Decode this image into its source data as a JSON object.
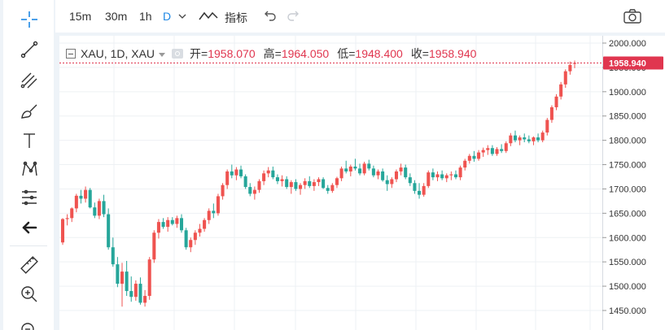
{
  "toolbar": {
    "timeframes": [
      "15m",
      "30m",
      "1h",
      "D"
    ],
    "active_timeframe": "D",
    "indicators_label": "指标"
  },
  "legend": {
    "symbol": "XAU, 1D, XAU",
    "open_label": "开=",
    "open_value": "1958.070",
    "high_label": "高=",
    "high_value": "1964.050",
    "low_label": "低=",
    "low_value": "1948.400",
    "close_label": "收=",
    "close_value": "1958.940"
  },
  "price_axis": {
    "ticks": [
      "2000.000",
      "1950.000",
      "1900.000",
      "1850.000",
      "1800.000",
      "1750.000",
      "1700.000",
      "1650.000",
      "1600.000",
      "1550.000",
      "1500.000",
      "1450.000"
    ],
    "last_price": "1958.940"
  },
  "colors": {
    "up": "#ef5350",
    "down": "#26a69a",
    "last_price_bg": "#e0364f",
    "accent": "#1e88e5"
  },
  "chart_data": {
    "type": "candlestick",
    "symbol": "XAU",
    "interval": "1D",
    "ylim": [
      1435,
      2005
    ],
    "candles": [
      [
        1590,
        1640,
        1585,
        1638
      ],
      [
        1638,
        1648,
        1625,
        1640
      ],
      [
        1640,
        1662,
        1632,
        1660
      ],
      [
        1660,
        1690,
        1652,
        1686
      ],
      [
        1686,
        1698,
        1670,
        1680
      ],
      [
        1680,
        1705,
        1672,
        1698
      ],
      [
        1698,
        1702,
        1660,
        1662
      ],
      [
        1662,
        1672,
        1640,
        1645
      ],
      [
        1645,
        1680,
        1638,
        1675
      ],
      [
        1675,
        1688,
        1642,
        1648
      ],
      [
        1648,
        1660,
        1575,
        1580
      ],
      [
        1580,
        1600,
        1540,
        1545
      ],
      [
        1545,
        1560,
        1498,
        1505
      ],
      [
        1505,
        1548,
        1458,
        1530
      ],
      [
        1530,
        1552,
        1480,
        1490
      ],
      [
        1490,
        1520,
        1468,
        1478
      ],
      [
        1478,
        1512,
        1470,
        1505
      ],
      [
        1505,
        1518,
        1462,
        1466
      ],
      [
        1466,
        1492,
        1458,
        1480
      ],
      [
        1480,
        1560,
        1472,
        1555
      ],
      [
        1555,
        1615,
        1548,
        1610
      ],
      [
        1610,
        1638,
        1598,
        1632
      ],
      [
        1632,
        1640,
        1618,
        1622
      ],
      [
        1622,
        1642,
        1612,
        1636
      ],
      [
        1636,
        1642,
        1625,
        1628
      ],
      [
        1628,
        1645,
        1620,
        1640
      ],
      [
        1640,
        1648,
        1610,
        1615
      ],
      [
        1615,
        1620,
        1575,
        1580
      ],
      [
        1580,
        1600,
        1570,
        1595
      ],
      [
        1595,
        1615,
        1585,
        1610
      ],
      [
        1610,
        1628,
        1602,
        1618
      ],
      [
        1618,
        1640,
        1612,
        1636
      ],
      [
        1636,
        1660,
        1628,
        1655
      ],
      [
        1655,
        1670,
        1640,
        1650
      ],
      [
        1650,
        1690,
        1645,
        1685
      ],
      [
        1685,
        1712,
        1678,
        1708
      ],
      [
        1708,
        1740,
        1700,
        1736
      ],
      [
        1736,
        1750,
        1722,
        1728
      ],
      [
        1728,
        1745,
        1718,
        1740
      ],
      [
        1740,
        1748,
        1722,
        1726
      ],
      [
        1726,
        1730,
        1700,
        1704
      ],
      [
        1704,
        1712,
        1685,
        1690
      ],
      [
        1690,
        1705,
        1678,
        1698
      ],
      [
        1698,
        1720,
        1692,
        1716
      ],
      [
        1716,
        1738,
        1708,
        1732
      ],
      [
        1732,
        1745,
        1724,
        1738
      ],
      [
        1738,
        1746,
        1720,
        1724
      ],
      [
        1724,
        1730,
        1710,
        1716
      ],
      [
        1716,
        1728,
        1705,
        1720
      ],
      [
        1720,
        1726,
        1700,
        1704
      ],
      [
        1704,
        1718,
        1690,
        1714
      ],
      [
        1714,
        1720,
        1696,
        1700
      ],
      [
        1700,
        1712,
        1688,
        1708
      ],
      [
        1708,
        1722,
        1700,
        1716
      ],
      [
        1716,
        1726,
        1702,
        1706
      ],
      [
        1706,
        1720,
        1696,
        1714
      ],
      [
        1714,
        1724,
        1706,
        1720
      ],
      [
        1720,
        1724,
        1700,
        1702
      ],
      [
        1702,
        1708,
        1690,
        1696
      ],
      [
        1696,
        1712,
        1692,
        1708
      ],
      [
        1708,
        1725,
        1702,
        1722
      ],
      [
        1722,
        1746,
        1716,
        1742
      ],
      [
        1742,
        1758,
        1732,
        1736
      ],
      [
        1736,
        1750,
        1726,
        1746
      ],
      [
        1746,
        1762,
        1738,
        1742
      ],
      [
        1742,
        1752,
        1728,
        1732
      ],
      [
        1732,
        1756,
        1728,
        1752
      ],
      [
        1752,
        1760,
        1738,
        1742
      ],
      [
        1742,
        1748,
        1724,
        1728
      ],
      [
        1728,
        1740,
        1720,
        1736
      ],
      [
        1736,
        1742,
        1715,
        1718
      ],
      [
        1718,
        1728,
        1696,
        1710
      ],
      [
        1710,
        1724,
        1702,
        1720
      ],
      [
        1720,
        1740,
        1714,
        1736
      ],
      [
        1736,
        1752,
        1728,
        1744
      ],
      [
        1744,
        1750,
        1720,
        1724
      ],
      [
        1724,
        1732,
        1706,
        1712
      ],
      [
        1712,
        1718,
        1690,
        1696
      ],
      [
        1696,
        1712,
        1680,
        1688
      ],
      [
        1688,
        1712,
        1684,
        1706
      ],
      [
        1706,
        1738,
        1702,
        1734
      ],
      [
        1734,
        1742,
        1718,
        1724
      ],
      [
        1724,
        1736,
        1716,
        1730
      ],
      [
        1730,
        1738,
        1718,
        1722
      ],
      [
        1722,
        1732,
        1714,
        1728
      ],
      [
        1728,
        1736,
        1718,
        1730
      ],
      [
        1730,
        1738,
        1720,
        1724
      ],
      [
        1724,
        1748,
        1718,
        1744
      ],
      [
        1744,
        1762,
        1738,
        1758
      ],
      [
        1758,
        1772,
        1752,
        1768
      ],
      [
        1768,
        1778,
        1756,
        1762
      ],
      [
        1762,
        1780,
        1758,
        1775
      ],
      [
        1775,
        1785,
        1766,
        1780
      ],
      [
        1780,
        1790,
        1770,
        1784
      ],
      [
        1784,
        1790,
        1768,
        1772
      ],
      [
        1772,
        1786,
        1768,
        1782
      ],
      [
        1782,
        1792,
        1774,
        1778
      ],
      [
        1778,
        1798,
        1774,
        1794
      ],
      [
        1794,
        1815,
        1788,
        1810
      ],
      [
        1810,
        1820,
        1796,
        1800
      ],
      [
        1800,
        1810,
        1790,
        1806
      ],
      [
        1806,
        1814,
        1796,
        1802
      ],
      [
        1802,
        1810,
        1794,
        1798
      ],
      [
        1798,
        1808,
        1790,
        1806
      ],
      [
        1806,
        1814,
        1796,
        1800
      ],
      [
        1800,
        1820,
        1796,
        1816
      ],
      [
        1816,
        1846,
        1810,
        1842
      ],
      [
        1842,
        1872,
        1836,
        1868
      ],
      [
        1868,
        1895,
        1862,
        1890
      ],
      [
        1890,
        1920,
        1884,
        1915
      ],
      [
        1915,
        1946,
        1908,
        1942
      ],
      [
        1942,
        1962,
        1935,
        1955
      ],
      [
        1958.07,
        1964.05,
        1948.4,
        1958.94
      ]
    ]
  }
}
